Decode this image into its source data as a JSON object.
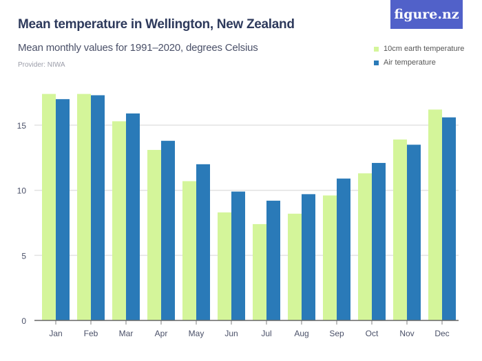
{
  "header": {
    "title": "Mean temperature in Wellington, New Zealand",
    "subtitle": "Mean monthly values for 1991–2020, degrees Celsius",
    "provider": "Provider: NIWA",
    "logo": "figure.nz"
  },
  "chart_data": {
    "type": "bar",
    "title": "Mean temperature in Wellington, New Zealand",
    "subtitle": "Mean monthly values for 1991–2020, degrees Celsius",
    "categories": [
      "Jan",
      "Feb",
      "Mar",
      "Apr",
      "May",
      "Jun",
      "Jul",
      "Aug",
      "Sep",
      "Oct",
      "Nov",
      "Dec"
    ],
    "series": [
      {
        "name": "10cm earth temperature",
        "color": "#d4f59a",
        "values": [
          17.4,
          17.4,
          15.3,
          13.1,
          10.7,
          8.3,
          7.4,
          8.2,
          9.6,
          11.3,
          13.9,
          16.2
        ]
      },
      {
        "name": "Air temperature",
        "color": "#2a7ab8",
        "values": [
          17.0,
          17.3,
          15.9,
          13.8,
          12.0,
          9.9,
          9.2,
          9.7,
          10.9,
          12.1,
          13.5,
          15.6
        ]
      }
    ],
    "yticks": [
      0,
      5,
      10,
      15
    ],
    "ylim": [
      0,
      18.2
    ],
    "grid": true,
    "legend_position": "top-right",
    "xlabel": "",
    "ylabel": ""
  }
}
